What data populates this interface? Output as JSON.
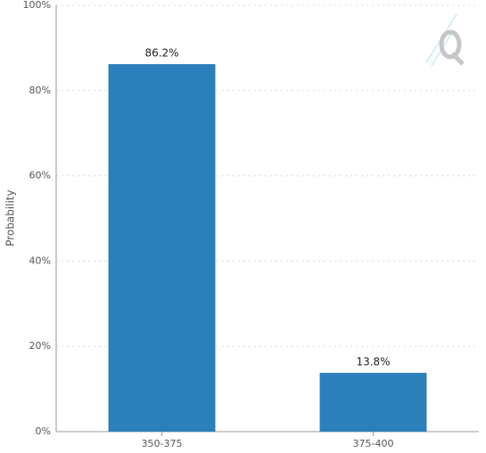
{
  "chart_data": {
    "type": "bar",
    "y_label": "Probability",
    "categories": [
      "350-375",
      "375-400"
    ],
    "values": [
      86.2,
      13.8
    ],
    "value_labels": [
      "86.2%",
      "13.8%"
    ],
    "color": "#2b7fba",
    "ylim": [
      0,
      100
    ],
    "yticks": [
      {
        "value": 0,
        "label": "0%"
      },
      {
        "value": 20,
        "label": "20%"
      },
      {
        "value": 40,
        "label": "40%"
      },
      {
        "value": 60,
        "label": "60%"
      },
      {
        "value": 80,
        "label": "80%"
      },
      {
        "value": 100,
        "label": "100%"
      }
    ],
    "grid": true
  }
}
